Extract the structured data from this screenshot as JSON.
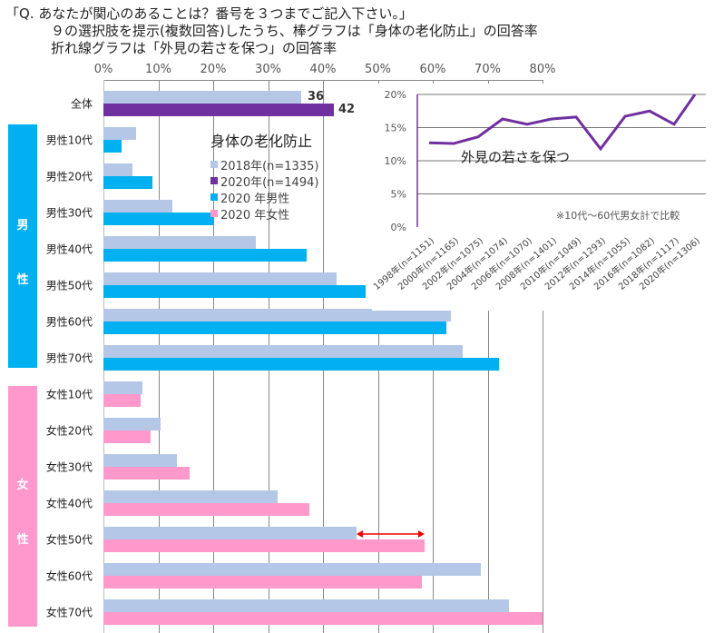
{
  "header": {
    "line1": "「Q. あなたが関心のあることは？番号を３つまでご記入下さい。」",
    "line2": "９の選択肢を提示(複数回答)したうち、棒グラフは「身体の老化防止」の回答率",
    "line3": "折れ線グラフは「外見の若さを保つ」の回答率"
  },
  "chart_data": [
    {
      "type": "bar",
      "orientation": "horizontal",
      "title": "身体の老化防止",
      "xlim": [
        0,
        80
      ],
      "xticks": [
        "0%",
        "10%",
        "20%",
        "30%",
        "40%",
        "50%",
        "60%",
        "70%",
        "80%"
      ],
      "categories": [
        "全体",
        "男性10代",
        "男性20代",
        "男性30代",
        "男性40代",
        "男性50代",
        "男性60代",
        "男性70代",
        "女性10代",
        "女性20代",
        "女性30代",
        "女性40代",
        "女性50代",
        "女性60代",
        "女性70代"
      ],
      "groups": {
        "male": "男性",
        "female": "女性",
        "male_band": "男\n\n性",
        "male_b1": "男",
        "male_b2": "性",
        "female_b1": "女",
        "female_b2": "性"
      },
      "series": [
        {
          "name": "2018年(n=1335)",
          "color": "#b4c7e7",
          "values": [
            36,
            6.0,
            5.3,
            12.6,
            27.8,
            42.5,
            63.3,
            65.5,
            7.1,
            10.4,
            13.4,
            31.7,
            46.1,
            68.8,
            73.9
          ]
        },
        {
          "name": "2020年(n=1494)",
          "color": "#7030a0",
          "values": [
            42,
            null,
            null,
            null,
            null,
            null,
            null,
            null,
            null,
            null,
            null,
            null,
            null,
            null,
            null
          ]
        },
        {
          "name": "2020 年男性",
          "color": "#00b0f0",
          "values": [
            null,
            3.3,
            8.9,
            20.0,
            37.0,
            47.8,
            62.5,
            72.1,
            null,
            null,
            null,
            null,
            null,
            null,
            null
          ]
        },
        {
          "name": "2020 年女性",
          "color": "#ff99cc",
          "values": [
            null,
            null,
            null,
            null,
            null,
            null,
            null,
            null,
            6.8,
            8.6,
            15.7,
            37.5,
            58.5,
            58.0,
            80.0
          ]
        }
      ],
      "data_labels": {
        "2018": "36",
        "2020": "42"
      },
      "annotation": "red double arrow between 女性50代 2018 and 2020 bars"
    },
    {
      "type": "line",
      "title": "外見の若さを保つ",
      "note": "※10代～60代男女計で比較",
      "ylim": [
        0,
        20
      ],
      "yticks": [
        "0%",
        "5%",
        "10%",
        "15%",
        "20%"
      ],
      "categories": [
        "1998年(n=1151)",
        "2000年(n=1165)",
        "2002年(n=1075)",
        "2004年(n=1074)",
        "2006年(n=1070)",
        "2008年(n=1401)",
        "2010年(n=1049)",
        "2012年(n=1293)",
        "2014年(n=1055)",
        "2016年(n=1082)",
        "2018年(n=1117)",
        "2020年(n=1306)"
      ],
      "values": [
        12.7,
        12.6,
        13.6,
        16.3,
        15.5,
        16.3,
        16.6,
        11.8,
        16.7,
        17.5,
        15.5,
        20.0
      ],
      "color": "#7030a0"
    }
  ]
}
